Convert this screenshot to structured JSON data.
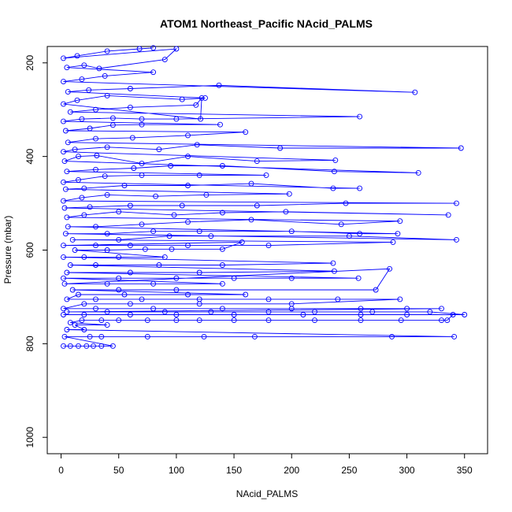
{
  "chart_data": {
    "type": "line",
    "title": "ATOM1 Northeast_Pacific NAcid_PALMS",
    "xlabel": "NAcid_PALMS",
    "ylabel": "Pressure (mbar)",
    "xlim": [
      -12,
      370
    ],
    "ylim": [
      1035,
      165
    ],
    "y_reversed": true,
    "x_ticks": [
      0,
      50,
      100,
      150,
      200,
      250,
      300,
      350
    ],
    "y_ticks": [
      200,
      400,
      600,
      800,
      1000
    ],
    "grid": false,
    "legend": "none",
    "series_color": "#0000ff",
    "series": [
      {
        "values": [
          [
            2,
            805
          ],
          [
            8,
            805
          ],
          [
            15,
            805
          ],
          [
            22,
            805
          ],
          [
            28,
            805
          ],
          [
            35,
            805
          ],
          [
            45,
            805
          ],
          [
            3,
            785
          ],
          [
            25,
            785
          ],
          [
            35,
            785
          ],
          [
            75,
            785
          ],
          [
            124,
            785
          ],
          [
            168,
            785
          ],
          [
            287,
            785
          ],
          [
            341,
            785
          ],
          [
            5,
            770
          ],
          [
            20,
            770
          ],
          [
            12,
            760
          ],
          [
            40,
            760
          ],
          [
            8,
            755
          ],
          [
            18,
            750
          ],
          [
            35,
            750
          ],
          [
            50,
            750
          ],
          [
            75,
            750
          ],
          [
            100,
            750
          ],
          [
            120,
            750
          ],
          [
            150,
            750
          ],
          [
            180,
            750
          ],
          [
            220,
            750
          ],
          [
            260,
            750
          ],
          [
            295,
            750
          ],
          [
            330,
            750
          ],
          [
            335,
            750
          ],
          [
            340,
            738
          ],
          [
            300,
            738
          ],
          [
            260,
            738
          ],
          [
            210,
            738
          ],
          [
            150,
            738
          ],
          [
            100,
            738
          ],
          [
            60,
            738
          ],
          [
            20,
            738
          ],
          [
            2,
            738
          ],
          [
            350,
            738
          ],
          [
            320,
            732
          ],
          [
            270,
            732
          ],
          [
            220,
            732
          ],
          [
            180,
            732
          ],
          [
            130,
            732
          ],
          [
            90,
            732
          ],
          [
            40,
            732
          ],
          [
            5,
            732
          ],
          [
            330,
            725
          ],
          [
            300,
            725
          ],
          [
            260,
            725
          ],
          [
            200,
            725
          ],
          [
            140,
            725
          ],
          [
            80,
            725
          ],
          [
            30,
            725
          ],
          [
            2,
            725
          ],
          [
            20,
            715
          ],
          [
            60,
            715
          ],
          [
            120,
            715
          ],
          [
            200,
            715
          ],
          [
            294,
            705
          ],
          [
            240,
            705
          ],
          [
            180,
            705
          ],
          [
            120,
            705
          ],
          [
            70,
            705
          ],
          [
            30,
            705
          ],
          [
            5,
            705
          ],
          [
            15,
            695
          ],
          [
            55,
            695
          ],
          [
            110,
            695
          ],
          [
            160,
            695
          ],
          [
            10,
            685
          ],
          [
            50,
            685
          ],
          [
            100,
            685
          ],
          [
            273,
            685
          ],
          [
            285,
            640
          ],
          [
            3,
            672
          ],
          [
            40,
            672
          ],
          [
            80,
            672
          ],
          [
            140,
            672
          ],
          [
            2,
            660
          ],
          [
            50,
            660
          ],
          [
            100,
            660
          ],
          [
            150,
            660
          ],
          [
            200,
            660
          ],
          [
            258,
            660
          ],
          [
            5,
            648
          ],
          [
            60,
            648
          ],
          [
            120,
            648
          ],
          [
            237,
            645
          ],
          [
            8,
            632
          ],
          [
            30,
            632
          ],
          [
            85,
            632
          ],
          [
            140,
            632
          ],
          [
            236,
            628
          ],
          [
            2,
            615
          ],
          [
            20,
            615
          ],
          [
            50,
            615
          ],
          [
            90,
            615
          ],
          [
            12,
            600
          ],
          [
            40,
            600
          ],
          [
            73,
            598
          ],
          [
            96,
            598
          ],
          [
            140,
            598
          ],
          [
            157,
            583
          ],
          [
            2,
            590
          ],
          [
            30,
            590
          ],
          [
            60,
            590
          ],
          [
            110,
            590
          ],
          [
            180,
            590
          ],
          [
            288,
            583
          ],
          [
            10,
            578
          ],
          [
            50,
            578
          ],
          [
            94,
            570
          ],
          [
            130,
            570
          ],
          [
            250,
            570
          ],
          [
            343,
            578
          ],
          [
            4,
            565
          ],
          [
            40,
            565
          ],
          [
            80,
            560
          ],
          [
            120,
            560
          ],
          [
            200,
            560
          ],
          [
            259,
            565
          ],
          [
            292,
            565
          ],
          [
            6,
            550
          ],
          [
            30,
            550
          ],
          [
            70,
            545
          ],
          [
            110,
            540
          ],
          [
            165,
            535
          ],
          [
            243,
            545
          ],
          [
            294,
            538
          ],
          [
            5,
            530
          ],
          [
            20,
            525
          ],
          [
            50,
            518
          ],
          [
            98,
            525
          ],
          [
            140,
            520
          ],
          [
            195,
            518
          ],
          [
            336,
            525
          ],
          [
            3,
            510
          ],
          [
            25,
            508
          ],
          [
            60,
            505
          ],
          [
            105,
            505
          ],
          [
            170,
            505
          ],
          [
            247,
            500
          ],
          [
            343,
            500
          ],
          [
            2,
            495
          ],
          [
            18,
            488
          ],
          [
            40,
            482
          ],
          [
            82,
            485
          ],
          [
            126,
            482
          ],
          [
            198,
            480
          ],
          [
            4,
            470
          ],
          [
            20,
            468
          ],
          [
            55,
            462
          ],
          [
            110,
            462
          ],
          [
            165,
            458
          ],
          [
            236,
            468
          ],
          [
            259,
            468
          ],
          [
            2,
            455
          ],
          [
            15,
            450
          ],
          [
            38,
            442
          ],
          [
            70,
            440
          ],
          [
            120,
            440
          ],
          [
            178,
            440
          ],
          [
            5,
            432
          ],
          [
            30,
            428
          ],
          [
            63,
            425
          ],
          [
            95,
            420
          ],
          [
            140,
            420
          ],
          [
            237,
            432
          ],
          [
            310,
            435
          ],
          [
            3,
            410
          ],
          [
            15,
            400
          ],
          [
            31,
            398
          ],
          [
            70,
            415
          ],
          [
            110,
            400
          ],
          [
            170,
            410
          ],
          [
            238,
            408
          ],
          [
            2,
            390
          ],
          [
            12,
            385
          ],
          [
            40,
            380
          ],
          [
            85,
            385
          ],
          [
            118,
            375
          ],
          [
            190,
            382
          ],
          [
            347,
            382
          ],
          [
            6,
            370
          ],
          [
            30,
            362
          ],
          [
            62,
            360
          ],
          [
            110,
            355
          ],
          [
            160,
            348
          ],
          [
            4,
            345
          ],
          [
            25,
            340
          ],
          [
            45,
            333
          ],
          [
            70,
            332
          ],
          [
            138,
            332
          ],
          [
            2,
            325
          ],
          [
            18,
            320
          ],
          [
            45,
            318
          ],
          [
            70,
            320
          ],
          [
            100,
            320
          ],
          [
            259,
            315
          ],
          [
            8,
            305
          ],
          [
            30,
            300
          ],
          [
            60,
            295
          ],
          [
            117,
            290
          ],
          [
            122,
            275
          ],
          [
            121,
            320
          ],
          [
            2,
            288
          ],
          [
            14,
            280
          ],
          [
            40,
            270
          ],
          [
            105,
            278
          ],
          [
            125,
            275
          ],
          [
            6,
            262
          ],
          [
            24,
            258
          ],
          [
            60,
            255
          ],
          [
            137,
            248
          ],
          [
            307,
            263
          ],
          [
            2,
            240
          ],
          [
            18,
            235
          ],
          [
            38,
            228
          ],
          [
            80,
            220
          ],
          [
            5,
            210
          ],
          [
            20,
            205
          ],
          [
            33,
            212
          ],
          [
            90,
            193
          ],
          [
            100,
            170
          ],
          [
            2,
            190
          ],
          [
            14,
            185
          ],
          [
            40,
            175
          ],
          [
            68,
            170
          ],
          [
            80,
            168
          ]
        ]
      }
    ]
  }
}
